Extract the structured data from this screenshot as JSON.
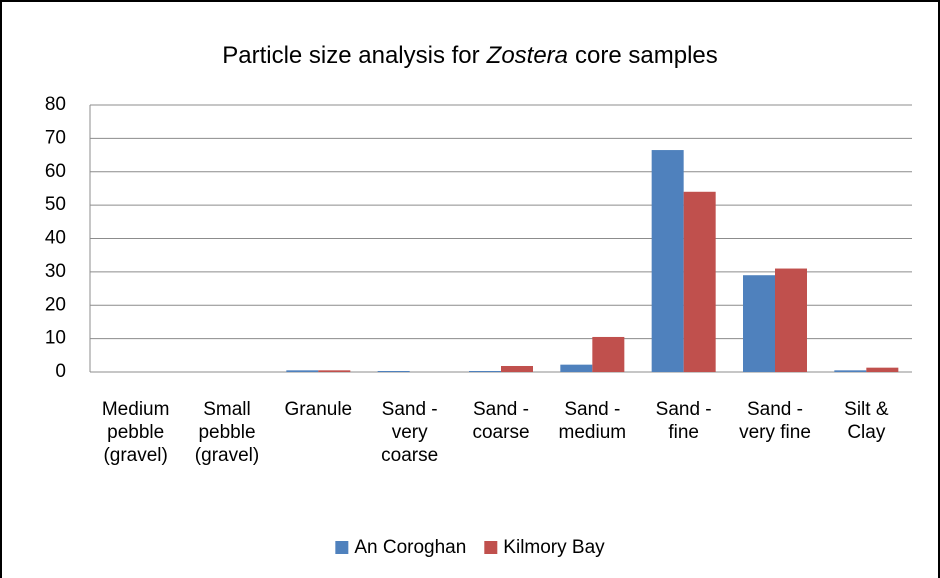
{
  "chart_data": {
    "type": "bar",
    "title": [
      "Particle size analysis for",
      "Zostera",
      "core samples"
    ],
    "title_italic": [
      false,
      true,
      false
    ],
    "categories": [
      "Medium pebble (gravel)",
      "Small pebble (gravel)",
      "Granule",
      "Sand - very coarse",
      "Sand - coarse",
      "Sand - medium",
      "Sand - fine",
      "Sand - very fine",
      "Silt & Clay"
    ],
    "series": [
      {
        "name": "An Coroghan",
        "color": "#4f81bd",
        "values": [
          0,
          0,
          0.5,
          0.3,
          0.3,
          2.2,
          66.5,
          29,
          0.5
        ]
      },
      {
        "name": "Kilmory Bay",
        "color": "#c0504d",
        "values": [
          0,
          0,
          0.5,
          0,
          1.8,
          10.5,
          54,
          31,
          1.3
        ]
      }
    ],
    "ylim": [
      0,
      80
    ],
    "yticks": [
      0,
      10,
      20,
      30,
      40,
      50,
      60,
      70,
      80
    ],
    "grid": true,
    "legend": "bottom"
  }
}
